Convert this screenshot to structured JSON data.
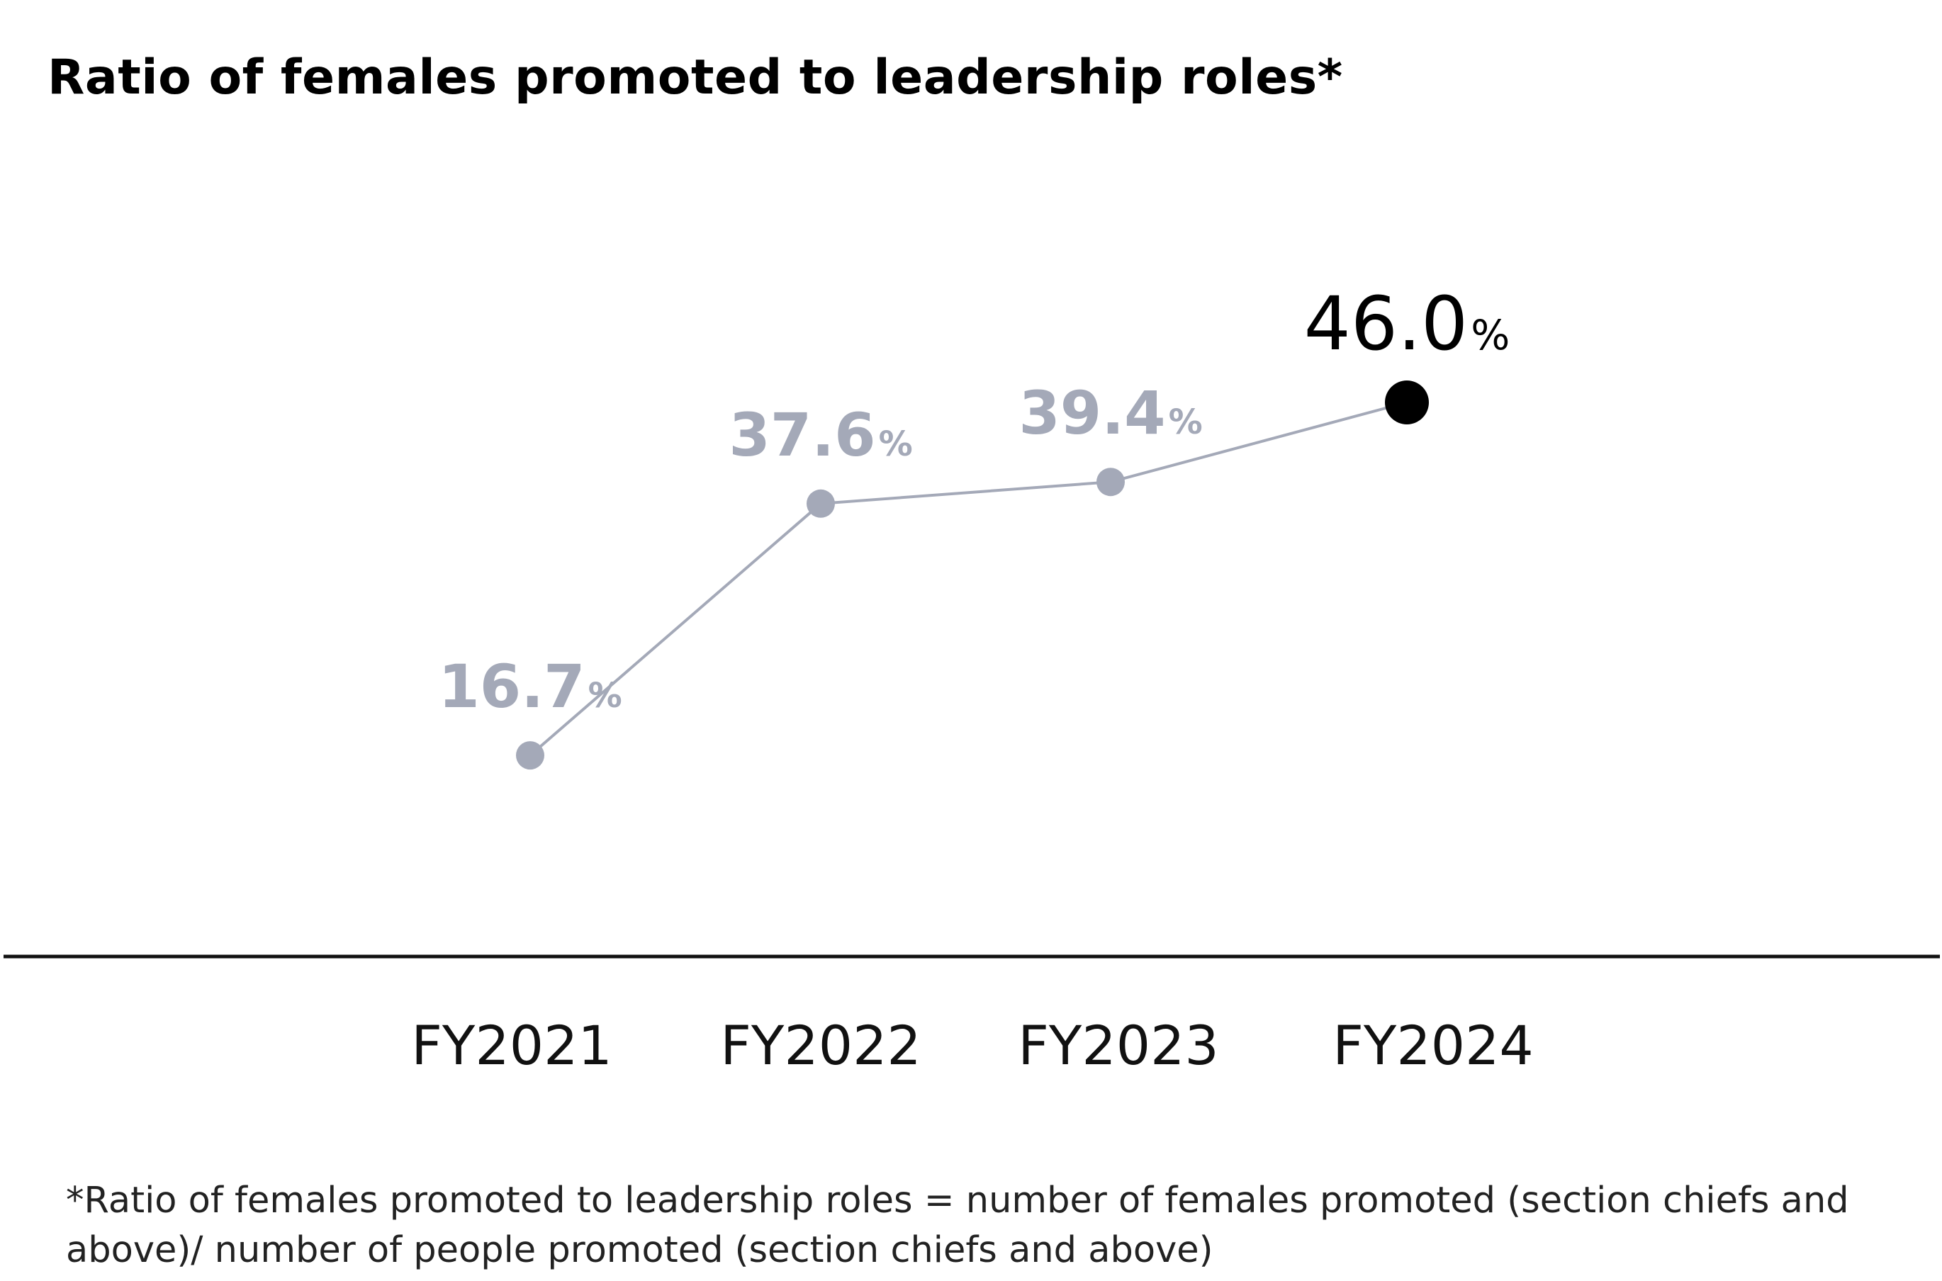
{
  "chart_data": {
    "type": "line",
    "title": "Ratio of females promoted to leadership roles*",
    "categories": [
      "FY2021",
      "FY2022",
      "FY2023",
      "FY2024"
    ],
    "values": [
      16.7,
      37.6,
      39.4,
      46.0
    ],
    "value_labels": [
      "16.7",
      "37.6",
      "39.4",
      "46.0"
    ],
    "unit": "%",
    "highlight_index": 3,
    "ylim": [
      0,
      65
    ],
    "xlabel": "",
    "ylabel": "",
    "grid": false,
    "footnote": "*Ratio of females promoted to leadership roles = number of females promoted (section chiefs and above)/ number of people promoted (section chiefs and above)"
  },
  "colors": {
    "series": "#a4a9b8",
    "label": "#a4a9b8",
    "highlight": "#000000",
    "axis": "#111111"
  }
}
